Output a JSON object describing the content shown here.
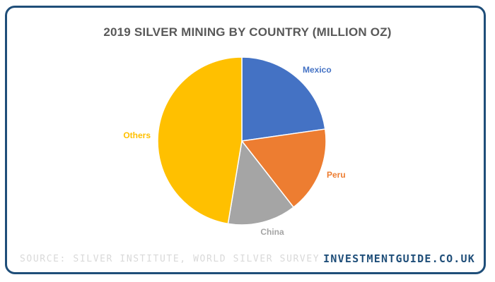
{
  "chart_data": {
    "type": "pie",
    "title": "2019 SILVER MINING BY COUNTRY (MILLION OZ)",
    "categories": [
      "Mexico",
      "Peru",
      "China",
      "Others"
    ],
    "values": [
      190,
      140,
      110,
      396
    ],
    "colors": [
      "#4472C4",
      "#ED7D31",
      "#A5A5A5",
      "#FFC000"
    ],
    "legend": "none (direct labels)"
  },
  "footer": {
    "source": "SOURCE: SILVER INSTITUTE, WORLD SILVER SURVEY",
    "brand": "INVESTMENTGUIDE.CO.UK"
  },
  "colors": {
    "border": "#1f4e79",
    "title": "#595959",
    "source": "#d9d9d9",
    "brand": "#1f4e79"
  }
}
